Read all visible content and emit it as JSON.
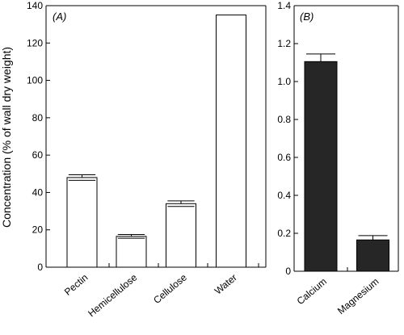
{
  "y_axis_title": "Concentration (% of wall dry weight)",
  "chart_data": [
    {
      "type": "bar",
      "panel_label": "(A)",
      "categories": [
        "Pectin",
        "Hemicellulose",
        "Cellulose",
        "Water"
      ],
      "values": [
        48,
        16.5,
        34,
        135
      ],
      "errors": [
        1.5,
        1,
        1.5,
        null
      ],
      "bar_color": "#ffffff",
      "ylim": [
        0,
        140
      ],
      "yticks": [
        0,
        20,
        40,
        60,
        80,
        100,
        120,
        140
      ],
      "ytick_labels": [
        "0",
        "20",
        "40",
        "60",
        "80",
        "100",
        "120",
        "140"
      ],
      "ylabel": "Concentration (% of wall dry weight)"
    },
    {
      "type": "bar",
      "panel_label": "(B)",
      "categories": [
        "Calcium",
        "Magnesium"
      ],
      "values": [
        1.105,
        0.165
      ],
      "errors": [
        0.04,
        0.023
      ],
      "bar_color": "#262626",
      "ylim": [
        0,
        1.4
      ],
      "yticks": [
        0,
        0.2,
        0.4,
        0.6,
        0.8,
        1.0,
        1.2,
        1.4
      ],
      "ytick_labels": [
        "0",
        "0.2",
        "0.4",
        "0.6",
        "0.8",
        "1.0",
        "1.2",
        "1.4"
      ]
    }
  ]
}
